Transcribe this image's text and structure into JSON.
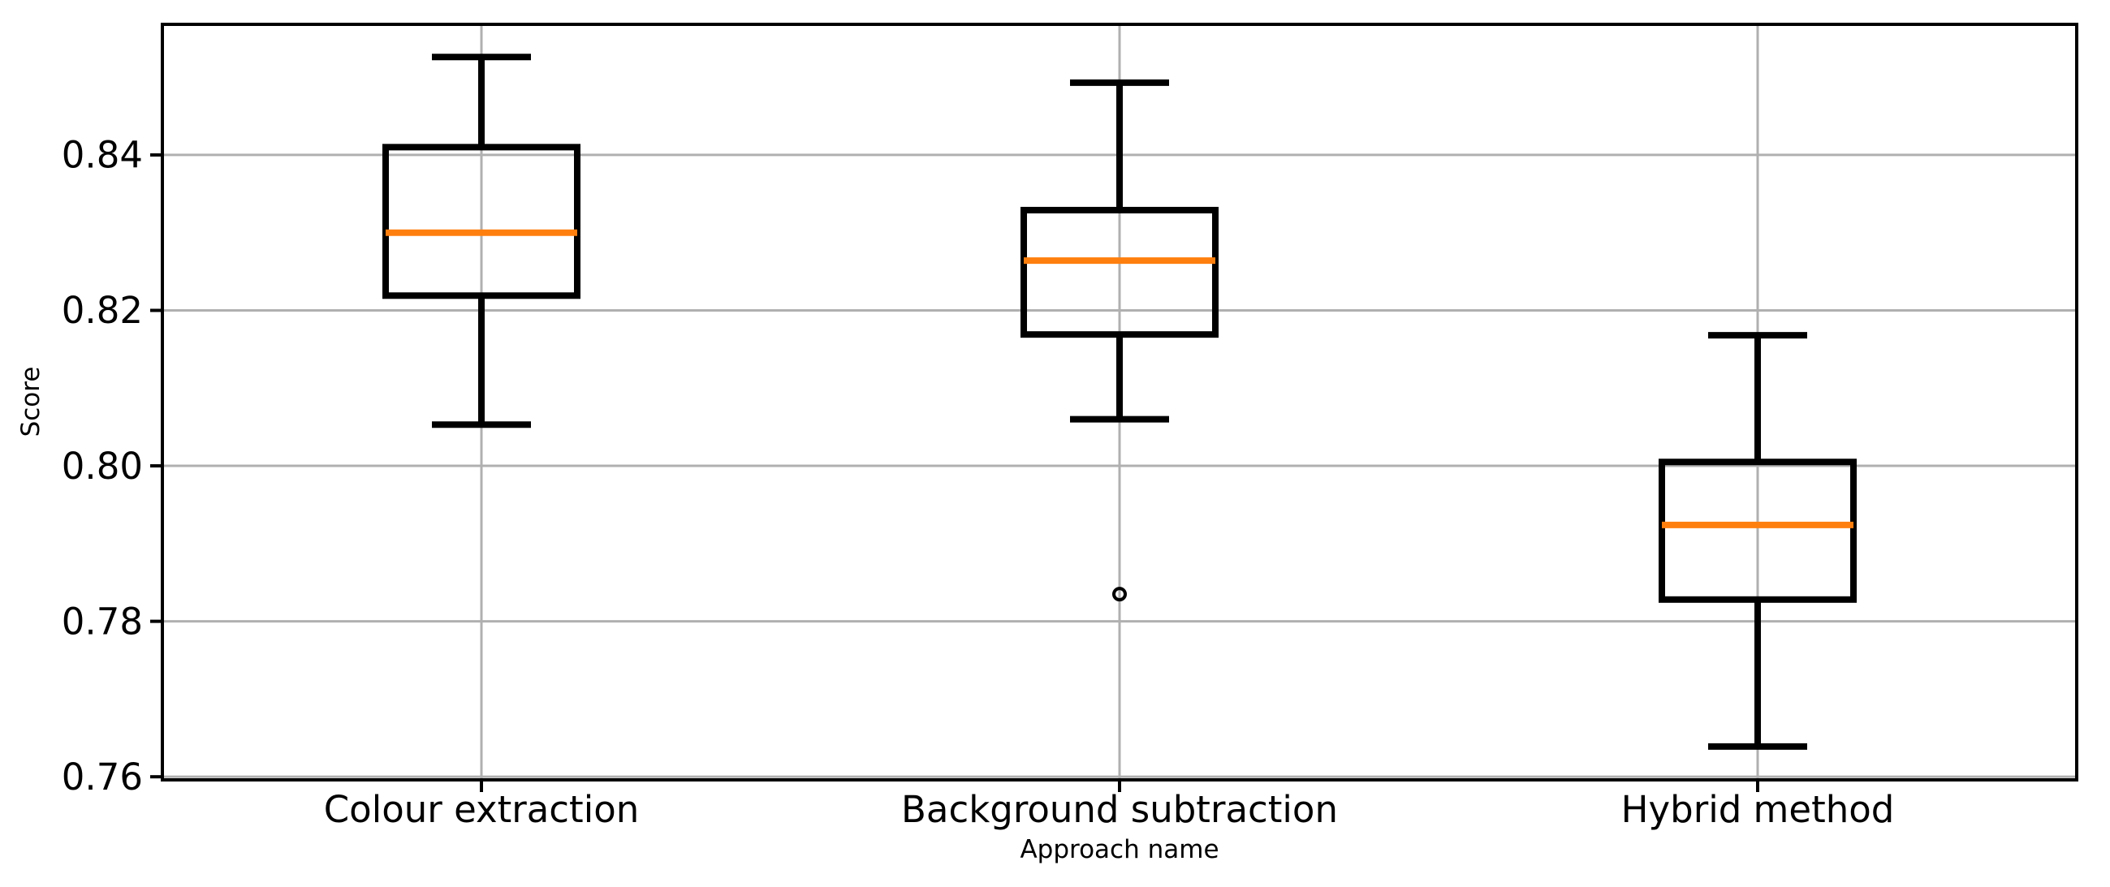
{
  "figure": {
    "background_color": "#ffffff",
    "labels": {
      "x_axis": "Approach name",
      "y_axis": "Score"
    }
  },
  "chart_data": {
    "type": "boxplot",
    "title": "",
    "xlabel": "Approach name",
    "ylabel": "Score",
    "categories": [
      "Colour extraction",
      "Background subtraction",
      "Hybrid method"
    ],
    "ytick_values": [
      0.76,
      0.78,
      0.8,
      0.82,
      0.84
    ],
    "ytick_labels": [
      "0.76",
      "0.78",
      "0.80",
      "0.82",
      "0.84"
    ],
    "ylim": [
      0.7596,
      0.8568
    ],
    "grid": true,
    "legend": "none",
    "colors": {
      "box_line": "#000000",
      "median_line": "#ff7f0e",
      "grid_line": "#b0b0b0",
      "spine": "#000000",
      "outlier_edge": "#000000"
    },
    "series": [
      {
        "name": "Colour extraction",
        "whisker_low": 0.8053,
        "q1": 0.8219,
        "median": 0.83,
        "q3": 0.841,
        "whisker_high": 0.8526,
        "outliers": []
      },
      {
        "name": "Background subtraction",
        "whisker_low": 0.806,
        "q1": 0.8169,
        "median": 0.8264,
        "q3": 0.8329,
        "whisker_high": 0.8493,
        "outliers": [
          0.7835
        ]
      },
      {
        "name": "Hybrid method",
        "whisker_low": 0.7639,
        "q1": 0.7828,
        "median": 0.7924,
        "q3": 0.8005,
        "whisker_high": 0.8168,
        "outliers": []
      }
    ]
  }
}
